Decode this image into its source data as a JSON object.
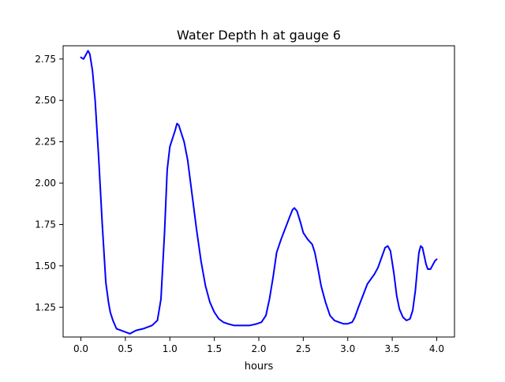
{
  "chart_data": {
    "type": "line",
    "title": "Water Depth h at gauge 6",
    "xlabel": "hours",
    "ylabel": "",
    "xlim": [
      -0.2,
      4.2
    ],
    "ylim": [
      1.07,
      2.83
    ],
    "xticks": [
      0.0,
      0.5,
      1.0,
      1.5,
      2.0,
      2.5,
      3.0,
      3.5,
      4.0
    ],
    "xtick_labels": [
      "0.0",
      "0.5",
      "1.0",
      "1.5",
      "2.0",
      "2.5",
      "3.0",
      "3.5",
      "4.0"
    ],
    "yticks": [
      1.25,
      1.5,
      1.75,
      2.0,
      2.25,
      2.5,
      2.75
    ],
    "ytick_labels": [
      "1.25",
      "1.50",
      "1.75",
      "2.00",
      "2.25",
      "2.50",
      "2.75"
    ],
    "grid": false,
    "series": [
      {
        "color": "#0000ff",
        "x": [
          0.0,
          0.03,
          0.06,
          0.08,
          0.1,
          0.13,
          0.16,
          0.2,
          0.24,
          0.28,
          0.31,
          0.33,
          0.36,
          0.4,
          0.45,
          0.55,
          0.62,
          0.7,
          0.8,
          0.86,
          0.9,
          0.94,
          0.97,
          1.0,
          1.03,
          1.06,
          1.08,
          1.1,
          1.13,
          1.16,
          1.2,
          1.25,
          1.3,
          1.35,
          1.4,
          1.45,
          1.5,
          1.55,
          1.6,
          1.65,
          1.72,
          1.76,
          1.8,
          1.9,
          1.98,
          2.03,
          2.08,
          2.12,
          2.16,
          2.2,
          2.25,
          2.3,
          2.35,
          2.38,
          2.4,
          2.43,
          2.47,
          2.5,
          2.55,
          2.6,
          2.63,
          2.67,
          2.7,
          2.75,
          2.8,
          2.85,
          2.9,
          2.95,
          3.0,
          3.05,
          3.08,
          3.12,
          3.17,
          3.22,
          3.26,
          3.3,
          3.34,
          3.38,
          3.42,
          3.45,
          3.48,
          3.52,
          3.55,
          3.58,
          3.62,
          3.66,
          3.7,
          3.73,
          3.76,
          3.78,
          3.8,
          3.82,
          3.84,
          3.86,
          3.88,
          3.9,
          3.93,
          3.96,
          3.98,
          4.0
        ],
        "y": [
          2.76,
          2.75,
          2.78,
          2.8,
          2.78,
          2.68,
          2.5,
          2.15,
          1.75,
          1.4,
          1.28,
          1.22,
          1.17,
          1.12,
          1.11,
          1.09,
          1.11,
          1.12,
          1.14,
          1.17,
          1.3,
          1.7,
          2.08,
          2.22,
          2.27,
          2.32,
          2.36,
          2.35,
          2.3,
          2.25,
          2.14,
          1.93,
          1.72,
          1.53,
          1.38,
          1.28,
          1.22,
          1.18,
          1.16,
          1.15,
          1.14,
          1.14,
          1.14,
          1.14,
          1.15,
          1.16,
          1.2,
          1.3,
          1.43,
          1.58,
          1.66,
          1.73,
          1.8,
          1.84,
          1.85,
          1.83,
          1.76,
          1.7,
          1.66,
          1.63,
          1.58,
          1.47,
          1.38,
          1.28,
          1.2,
          1.17,
          1.16,
          1.15,
          1.15,
          1.16,
          1.19,
          1.25,
          1.32,
          1.39,
          1.42,
          1.45,
          1.49,
          1.55,
          1.61,
          1.62,
          1.59,
          1.45,
          1.32,
          1.24,
          1.19,
          1.17,
          1.18,
          1.23,
          1.35,
          1.47,
          1.58,
          1.62,
          1.61,
          1.56,
          1.51,
          1.48,
          1.48,
          1.51,
          1.53,
          1.54
        ]
      }
    ]
  }
}
